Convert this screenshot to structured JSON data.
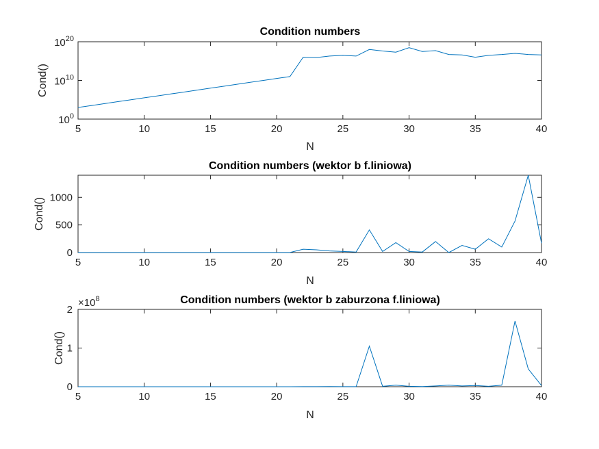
{
  "chart_data": [
    {
      "type": "line",
      "title": "Condition numbers",
      "xlabel": "N",
      "ylabel": "Cond()",
      "xlim": [
        5,
        40
      ],
      "ylim": [
        1,
        1e+20
      ],
      "yscale": "log",
      "xticks": [
        "5",
        "10",
        "15",
        "20",
        "25",
        "30",
        "35",
        "40"
      ],
      "yticks": [
        {
          "base": "10",
          "exp": "0"
        },
        {
          "base": "10",
          "exp": "10"
        },
        {
          "base": "10",
          "exp": "20"
        }
      ],
      "series": [
        {
          "color": "#0072BD",
          "x": [
            5,
            6,
            7,
            8,
            9,
            10,
            11,
            12,
            13,
            14,
            15,
            16,
            17,
            18,
            19,
            20,
            21,
            22,
            23,
            24,
            25,
            26,
            27,
            28,
            29,
            30,
            31,
            32,
            33,
            34,
            35,
            36,
            37,
            38,
            39,
            40
          ],
          "y": [
            1000.0,
            3200.0,
            10000.0,
            32000.0,
            100000.0,
            320000.0,
            1000000.0,
            3200000.0,
            10000000.0,
            32000000.0,
            100000000.0,
            320000000.0,
            1000000000.0,
            3200000000.0,
            10000000000.0,
            32000000000.0,
            100000000000.0,
            1e+16,
            8000000000000000.0,
            2e+16,
            3e+16,
            2e+16,
            1e+18,
            4e+17,
            2e+17,
            3e+18,
            3e+17,
            5e+17,
            5e+16,
            4e+16,
            1e+16,
            3e+16,
            5e+16,
            1e+17,
            5e+16,
            4e+16
          ]
        }
      ]
    },
    {
      "type": "line",
      "title": "Condition numbers (wektor b f.liniowa)",
      "xlabel": "N",
      "ylabel": "Cond()",
      "xlim": [
        5,
        40
      ],
      "ylim": [
        0,
        1400
      ],
      "xticks": [
        "5",
        "10",
        "15",
        "20",
        "25",
        "30",
        "35",
        "40"
      ],
      "yticks": [
        "0",
        "500",
        "1000"
      ],
      "series": [
        {
          "color": "#0072BD",
          "x": [
            5,
            6,
            7,
            8,
            9,
            10,
            11,
            12,
            13,
            14,
            15,
            16,
            17,
            18,
            19,
            20,
            21,
            22,
            23,
            24,
            25,
            26,
            27,
            28,
            29,
            30,
            31,
            32,
            33,
            34,
            35,
            36,
            37,
            38,
            39,
            40
          ],
          "y": [
            2,
            2,
            2,
            2,
            2,
            2,
            2,
            2,
            2,
            2,
            2,
            2,
            2,
            2,
            2,
            2,
            2,
            60,
            50,
            30,
            20,
            10,
            410,
            20,
            180,
            20,
            10,
            200,
            0,
            130,
            60,
            250,
            100,
            570,
            1400,
            170
          ]
        }
      ]
    },
    {
      "type": "line",
      "title": "Condition numbers (wektor b zaburzona f.liniowa)",
      "xlabel": "N",
      "ylabel": "Cond()",
      "xlim": [
        5,
        40
      ],
      "ylim": [
        0,
        2
      ],
      "yexponent": {
        "base": "10",
        "exp": "8"
      },
      "xticks": [
        "5",
        "10",
        "15",
        "20",
        "25",
        "30",
        "35",
        "40"
      ],
      "yticks": [
        "0",
        "1",
        "2"
      ],
      "series": [
        {
          "color": "#0072BD",
          "x": [
            5,
            6,
            7,
            8,
            9,
            10,
            11,
            12,
            13,
            14,
            15,
            16,
            17,
            18,
            19,
            20,
            21,
            22,
            23,
            24,
            25,
            26,
            27,
            28,
            29,
            30,
            31,
            32,
            33,
            34,
            35,
            36,
            37,
            38,
            39,
            40
          ],
          "y": [
            0,
            0,
            0,
            0,
            0,
            0,
            0,
            0,
            0,
            0,
            0,
            0,
            0,
            0,
            0,
            0,
            0,
            0.002,
            0.003,
            0.004,
            0.003,
            0.002,
            1.05,
            0.01,
            0.04,
            0.01,
            0.005,
            0.02,
            0.04,
            0.02,
            0.03,
            0.01,
            0.04,
            1.7,
            0.46,
            0.03
          ]
        }
      ]
    }
  ]
}
